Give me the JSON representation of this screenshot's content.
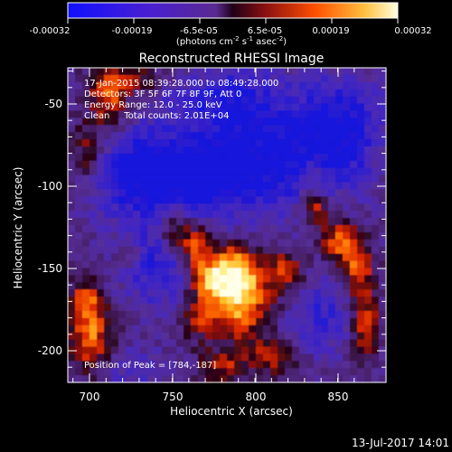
{
  "colorbar": {
    "tick_labels": [
      "-0.00032",
      "-0.00019",
      "-6.5e-05",
      "6.5e-05",
      "0.00019",
      "0.00032"
    ],
    "units_text": "(photons cm",
    "units_exp1": "-2",
    "units_mid": " s",
    "units_exp2": "-1",
    "units_mid2": " asec",
    "units_exp3": "-2",
    "units_close": ")"
  },
  "title": "Reconstructed RHESSI Image",
  "info": {
    "time_range": "17-Jan-2015 08:39:28.000 to 08:49:28.000",
    "detectors": "Detectors: 3F 5F 6F 7F 8F 9F, Att 0",
    "energy": "Energy Range: 12.0 - 25.0 keV",
    "algorithm": "Clean     Total counts: 2.01E+04",
    "peak": "Position of Peak = [784,-187]"
  },
  "axes": {
    "xlabel": "Heliocentric X (arcsec)",
    "ylabel": "Heliocentric Y (arcsec)",
    "x_ticks": [
      "700",
      "750",
      "800",
      "850"
    ],
    "y_ticks": [
      "-50",
      "-100",
      "-150",
      "-200"
    ]
  },
  "footer_timestamp": "13-Jul-2017 14:01"
}
